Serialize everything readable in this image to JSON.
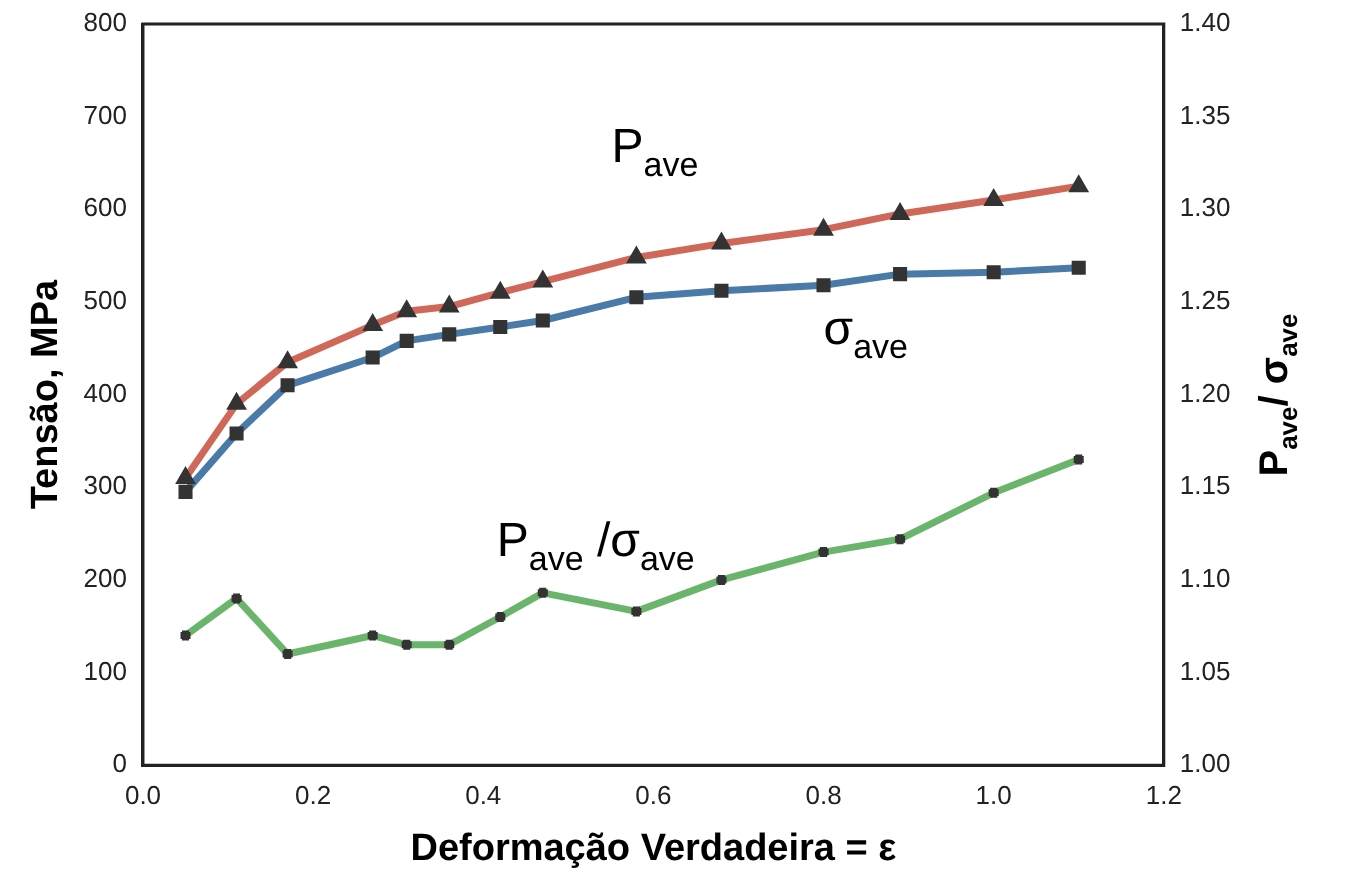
{
  "chart_data": {
    "type": "line",
    "xlabel": "Deformação Verdadeira = ε",
    "ylabel": "Tensão, MPa",
    "y2label": "P$_{ave}$/ σ$_{ave}$",
    "x": [
      0.05,
      0.11,
      0.17,
      0.27,
      0.31,
      0.36,
      0.42,
      0.47,
      0.58,
      0.68,
      0.8,
      0.89,
      1.0,
      1.1
    ],
    "series": [
      {
        "name": "P$_{ave}$",
        "color": "#d0685a",
        "marker": "triangle",
        "values": [
          310,
          390,
          435,
          475,
          490,
          495,
          510,
          522,
          548,
          563,
          578,
          595,
          610,
          625
        ]
      },
      {
        "name": "σ$_{ave}$",
        "color": "#4a7aa8",
        "marker": "square",
        "values": [
          295,
          358,
          410,
          440,
          458,
          465,
          473,
          480,
          505,
          512,
          518,
          530,
          532,
          537
        ]
      },
      {
        "name": "P$_{ave}$ /σ$_{ave}$",
        "color": "#6ab46c",
        "marker": "cross",
        "axis": "y2",
        "values": [
          1.07,
          1.09,
          1.06,
          1.07,
          1.065,
          1.065,
          1.08,
          1.093,
          1.083,
          1.1,
          1.115,
          1.122,
          1.147,
          1.165
        ]
      }
    ],
    "xlim": [
      0,
      1.2
    ],
    "xticks": [
      {
        "value": 0,
        "label": "0.0"
      },
      0.2,
      0.4,
      0.6,
      0.8,
      {
        "value": 1,
        "label": "1.0"
      },
      1.2
    ],
    "ylim": [
      0,
      800
    ],
    "yticks": [
      0,
      100,
      200,
      300,
      400,
      500,
      600,
      700,
      800
    ],
    "y2lim": [
      1,
      1.4
    ],
    "y2ticks": [
      {
        "value": 1,
        "label": "1.00"
      },
      1.05,
      {
        "value": 1.1,
        "label": "1.10"
      },
      1.15,
      {
        "value": 1.2,
        "label": "1.20"
      },
      1.25,
      {
        "value": 1.3,
        "label": "1.30"
      },
      1.35,
      {
        "value": 1.4,
        "label": "1.40"
      }
    ],
    "grid": false,
    "legend": false,
    "line_style": "solid"
  }
}
